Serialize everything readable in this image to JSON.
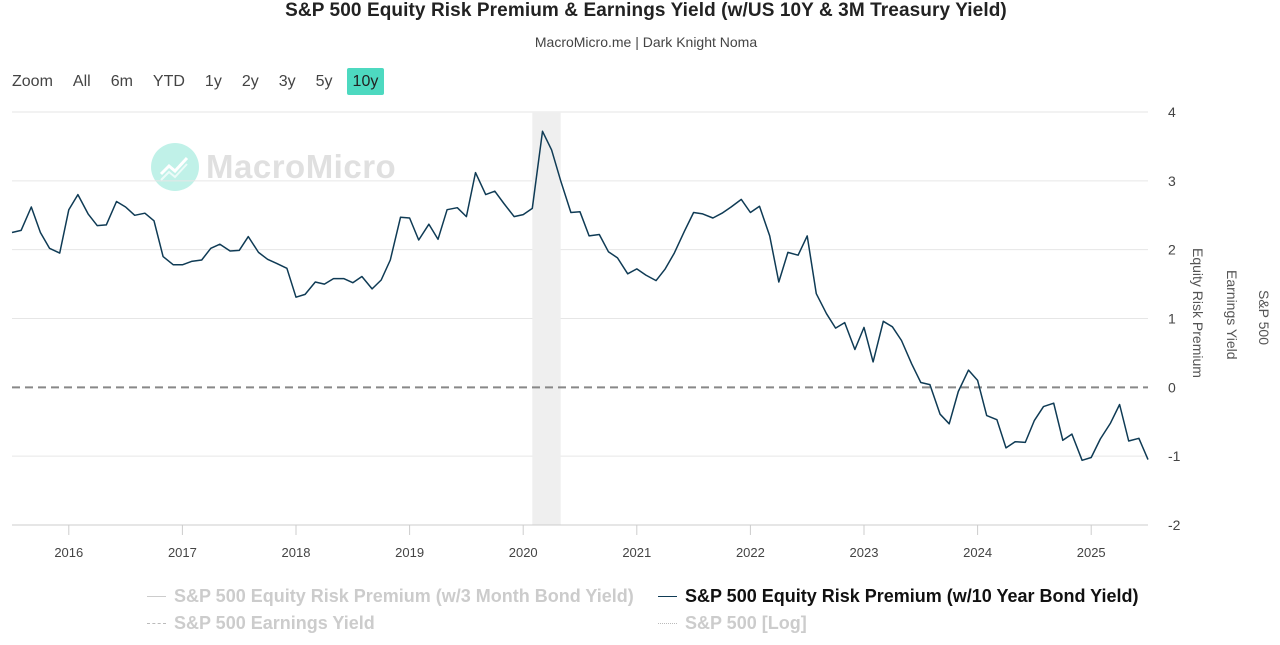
{
  "header": {
    "title": "S&P 500 Equity Risk Premium & Earnings Yield (w/US 10Y & 3M Treasury Yield)",
    "subtitle": "MacroMicro.me | Dark Knight Noma"
  },
  "zoom": {
    "label": "Zoom",
    "buttons": [
      "All",
      "6m",
      "YTD",
      "1y",
      "2y",
      "3y",
      "5y",
      "10y"
    ],
    "active": "10y"
  },
  "watermark": {
    "text": "MacroMicro"
  },
  "axes": {
    "right_inner_title": "Equity Risk Premium",
    "right_middle_title": "Earnings Yield",
    "right_outer_title": "S&P 500"
  },
  "legend": [
    {
      "label": "S&P 500 Equity Risk Premium (w/3 Month Bond Yield)",
      "visible": false,
      "style": "solid"
    },
    {
      "label": "S&P 500 Equity Risk Premium (w/10 Year Bond Yield)",
      "visible": true,
      "style": "solid"
    },
    {
      "label": "S&P 500 Earnings Yield",
      "visible": false,
      "style": "dashdot"
    },
    {
      "label": "S&P 500 [Log]",
      "visible": false,
      "style": "dotted"
    }
  ],
  "colors": {
    "series": "#0f3b55",
    "accent": "#4dd9c0",
    "recession_band": "#efefef",
    "zero_line": "#888888",
    "grid": "#e6e6e6"
  },
  "chart_data": {
    "type": "line",
    "title": "S&P 500 Equity Risk Premium & Earnings Yield (w/US 10Y & 3M Treasury Yield)",
    "xlabel": "",
    "ylabel": "Equity Risk Premium",
    "x_range": [
      2015.5,
      2025.5
    ],
    "ylim": [
      -2,
      4
    ],
    "y_ticks": [
      4,
      3,
      2,
      1,
      0,
      -1,
      -2
    ],
    "x_ticks": [
      2016,
      2017,
      2018,
      2019,
      2020,
      2021,
      2022,
      2023,
      2024,
      2025
    ],
    "reference_line": 0,
    "recession_band": [
      2020.08,
      2020.33
    ],
    "series": [
      {
        "name": "S&P 500 Equity Risk Premium (w/10 Year Bond Yield)",
        "x": [
          2015.5,
          2015.58,
          2015.67,
          2015.75,
          2015.83,
          2015.92,
          2016.0,
          2016.08,
          2016.17,
          2016.25,
          2016.33,
          2016.42,
          2016.5,
          2016.58,
          2016.67,
          2016.75,
          2016.83,
          2016.92,
          2017.0,
          2017.08,
          2017.17,
          2017.25,
          2017.33,
          2017.42,
          2017.5,
          2017.58,
          2017.67,
          2017.75,
          2017.83,
          2017.92,
          2018.0,
          2018.08,
          2018.17,
          2018.25,
          2018.33,
          2018.42,
          2018.5,
          2018.58,
          2018.67,
          2018.75,
          2018.83,
          2018.92,
          2019.0,
          2019.08,
          2019.17,
          2019.25,
          2019.33,
          2019.42,
          2019.5,
          2019.58,
          2019.67,
          2019.75,
          2019.83,
          2019.92,
          2020.0,
          2020.08,
          2020.17,
          2020.25,
          2020.33,
          2020.42,
          2020.5,
          2020.58,
          2020.67,
          2020.75,
          2020.83,
          2020.92,
          2021.0,
          2021.08,
          2021.17,
          2021.25,
          2021.33,
          2021.42,
          2021.5,
          2021.58,
          2021.67,
          2021.75,
          2021.83,
          2021.92,
          2022.0,
          2022.08,
          2022.17,
          2022.25,
          2022.33,
          2022.42,
          2022.5,
          2022.58,
          2022.67,
          2022.75,
          2022.83,
          2022.92,
          2023.0,
          2023.08,
          2023.17,
          2023.25,
          2023.33,
          2023.42,
          2023.5,
          2023.58,
          2023.67,
          2023.75,
          2023.83,
          2023.92,
          2024.0,
          2024.08,
          2024.17,
          2024.25,
          2024.33,
          2024.42,
          2024.5,
          2024.58,
          2024.67,
          2024.75,
          2024.83,
          2024.92,
          2025.0,
          2025.08,
          2025.17,
          2025.25,
          2025.33,
          2025.42,
          2025.5
        ],
        "values": [
          2.25,
          2.28,
          2.62,
          2.25,
          2.02,
          1.95,
          2.58,
          2.8,
          2.52,
          2.35,
          2.36,
          2.7,
          2.62,
          2.5,
          2.53,
          2.42,
          1.9,
          1.78,
          1.78,
          1.83,
          1.85,
          2.02,
          2.08,
          1.98,
          1.99,
          2.19,
          1.96,
          1.86,
          1.8,
          1.73,
          1.31,
          1.35,
          1.53,
          1.5,
          1.58,
          1.58,
          1.52,
          1.61,
          1.43,
          1.56,
          1.85,
          2.47,
          2.46,
          2.14,
          2.37,
          2.15,
          2.58,
          2.61,
          2.48,
          3.12,
          2.8,
          2.85,
          2.67,
          2.48,
          2.51,
          2.6,
          3.72,
          3.45,
          3.0,
          2.54,
          2.55,
          2.2,
          2.22,
          1.97,
          1.88,
          1.65,
          1.72,
          1.63,
          1.55,
          1.72,
          1.95,
          2.27,
          2.54,
          2.52,
          2.46,
          2.53,
          2.62,
          2.73,
          2.54,
          2.63,
          2.2,
          1.53,
          1.96,
          1.92,
          2.2,
          1.36,
          1.07,
          0.86,
          0.94,
          0.55,
          0.87,
          0.37,
          0.96,
          0.88,
          0.68,
          0.34,
          0.07,
          0.04,
          -0.39,
          -0.53,
          -0.06,
          0.25,
          0.1,
          -0.41,
          -0.47,
          -0.88,
          -0.79,
          -0.8,
          -0.48,
          -0.28,
          -0.23,
          -0.77,
          -0.68,
          -1.06,
          -1.02,
          -0.75,
          -0.52,
          -0.25,
          -0.78,
          -0.74,
          -1.05
        ]
      }
    ]
  }
}
